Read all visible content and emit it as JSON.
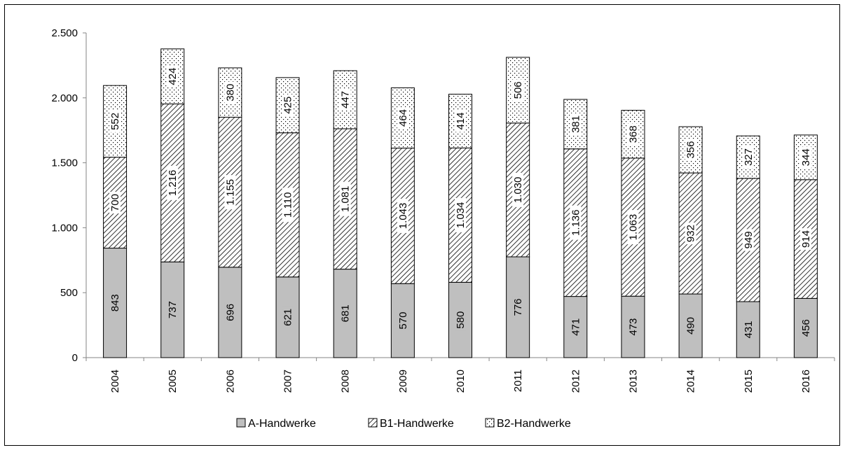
{
  "chart_data": {
    "type": "bar",
    "stacked": true,
    "categories": [
      "2004",
      "2005",
      "2006",
      "2007",
      "2008",
      "2009",
      "2010",
      "2011",
      "2012",
      "2013",
      "2014",
      "2015",
      "2016"
    ],
    "series": [
      {
        "name": "A-Handwerke",
        "values": [
          843,
          737,
          696,
          621,
          681,
          570,
          580,
          776,
          471,
          473,
          490,
          431,
          456
        ],
        "labels": [
          "843",
          "737",
          "696",
          "621",
          "681",
          "570",
          "580",
          "776",
          "471",
          "473",
          "490",
          "431",
          "456"
        ],
        "fill": "#bfbfbf",
        "pattern": "solid"
      },
      {
        "name": "B1-Handwerke",
        "values": [
          700,
          1216,
          1155,
          1110,
          1081,
          1043,
          1034,
          1030,
          1136,
          1063,
          932,
          949,
          914
        ],
        "labels": [
          "700",
          "1.216",
          "1.155",
          "1.110",
          "1.081",
          "1.043",
          "1.034",
          "1.030",
          "1.136",
          "1.063",
          "932",
          "949",
          "914"
        ],
        "fill": "#ffffff",
        "pattern": "diagonal-hatch"
      },
      {
        "name": "B2-Handwerke",
        "values": [
          552,
          424,
          380,
          425,
          447,
          464,
          414,
          506,
          381,
          368,
          356,
          327,
          344
        ],
        "labels": [
          "552",
          "424",
          "380",
          "425",
          "447",
          "464",
          "414",
          "506",
          "381",
          "368",
          "356",
          "327",
          "344"
        ],
        "fill": "#ffffff",
        "pattern": "dots"
      }
    ],
    "ylim": [
      0,
      2500
    ],
    "yticks": [
      0,
      500,
      1000,
      1500,
      2000,
      2500
    ],
    "ytick_labels": [
      "0",
      "500",
      "1.000",
      "1.500",
      "2.000",
      "2.500"
    ],
    "title": "",
    "xlabel": "",
    "ylabel": "",
    "grid": false,
    "legend": "bottom",
    "data_labels_rotated": true
  }
}
